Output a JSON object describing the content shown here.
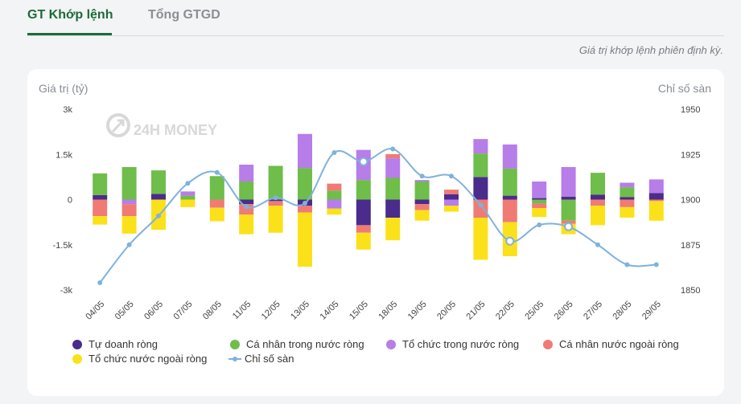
{
  "tabs": [
    {
      "label": "GT Khớp lệnh",
      "active": true
    },
    {
      "label": "Tổng GTGD",
      "active": false
    }
  ],
  "description": "Giá trị khớp lệnh phiên định kỳ.",
  "colors": {
    "tu_doanh": "#4a2c8c",
    "ca_nhan_trong_nuoc": "#6fbd4a",
    "to_chuc_trong_nuoc": "#b77de8",
    "ca_nhan_nuoc_ngoai": "#ef7b74",
    "to_chuc_nuoc_ngoai": "#fbe11a",
    "chi_so": "#7fb2dd",
    "accent": "#1b6b39"
  },
  "chart_data": {
    "type": "bar",
    "stacked": true,
    "watermark": "24H MONEY",
    "ylabel_left": "Giá trị (tỷ)",
    "ylabel_right": "Chỉ số sàn",
    "ylim_left": [
      -3000,
      3000
    ],
    "yticks_left": [
      "3k",
      "1.5k",
      "0",
      "-1.5k",
      "-3k"
    ],
    "ylim_right": [
      1850,
      1950
    ],
    "yticks_right": [
      "1950",
      "1925",
      "1900",
      "1875",
      "1850"
    ],
    "categories": [
      "04/05",
      "05/05",
      "06/05",
      "07/05",
      "08/05",
      "11/05",
      "12/05",
      "13/05",
      "14/05",
      "15/05",
      "18/05",
      "19/05",
      "20/05",
      "21/05",
      "22/05",
      "25/05",
      "26/05",
      "27/05",
      "28/05",
      "29/05"
    ],
    "series": [
      {
        "name": "Tự doanh ròng",
        "key": "tu_doanh",
        "values": [
          150,
          0,
          190,
          0,
          0,
          -150,
          -50,
          -200,
          0,
          -850,
          -600,
          -150,
          180,
          750,
          130,
          50,
          100,
          160,
          80,
          220
        ]
      },
      {
        "name": "Cá nhân trong nước ròng",
        "key": "ca_nhan_trong_nuoc",
        "values": [
          720,
          1080,
          780,
          130,
          780,
          600,
          1120,
          1050,
          300,
          650,
          720,
          600,
          0,
          780,
          900,
          -130,
          -700,
          730,
          330,
          0
        ]
      },
      {
        "name": "Tổ chức trong nước ròng",
        "key": "to_chuc_trong_nuoc",
        "values": [
          0,
          -150,
          0,
          140,
          0,
          560,
          0,
          1130,
          -300,
          1000,
          650,
          50,
          -200,
          480,
          800,
          550,
          980,
          0,
          150,
          450
        ]
      },
      {
        "name": "Cá nhân nước ngoài ròng",
        "key": "ca_nhan_nuoc_ngoai",
        "values": [
          -550,
          -400,
          0,
          0,
          -270,
          -350,
          -150,
          -230,
          230,
          -250,
          140,
          -200,
          150,
          -600,
          -750,
          -150,
          -100,
          -200,
          -250,
          -50
        ]
      },
      {
        "name": "Tổ chức nước ngoài ròng",
        "key": "to_chuc_nuoc_ngoai",
        "values": [
          -280,
          -580,
          -1000,
          -250,
          -450,
          -650,
          -900,
          -1800,
          -200,
          -560,
          -750,
          -350,
          -200,
          -1400,
          -1130,
          -300,
          -350,
          -650,
          -350,
          -650
        ]
      }
    ],
    "line": {
      "name": "Chỉ số sàn",
      "key": "chi_so",
      "values": [
        1854,
        1875,
        1891,
        1909,
        1915,
        1896,
        1901,
        1898,
        1926,
        1921,
        1928,
        1913,
        1913,
        1897,
        1877,
        1886,
        1885,
        1875,
        1864,
        1864
      ]
    },
    "legend_position": "bottom",
    "grid": false
  }
}
